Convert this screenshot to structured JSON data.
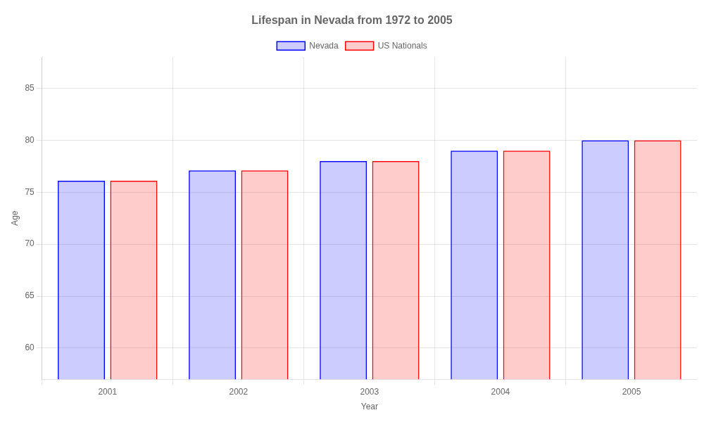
{
  "chart_data": {
    "type": "bar",
    "title": "Lifespan in Nevada from 1972 to 2005",
    "xlabel": "Year",
    "ylabel": "Age",
    "categories": [
      "2001",
      "2002",
      "2003",
      "2004",
      "2005"
    ],
    "series": [
      {
        "name": "Nevada",
        "color": "#0000ff",
        "values": [
          76.1,
          77.1,
          78.0,
          79.0,
          80.0
        ]
      },
      {
        "name": "US Nationals",
        "color": "#ff0000",
        "values": [
          76.1,
          77.1,
          78.0,
          79.0,
          80.0
        ]
      }
    ],
    "ylim": [
      57,
      88
    ],
    "yticks": [
      60,
      65,
      70,
      75,
      80,
      85
    ],
    "grid": true,
    "legend": "top"
  }
}
